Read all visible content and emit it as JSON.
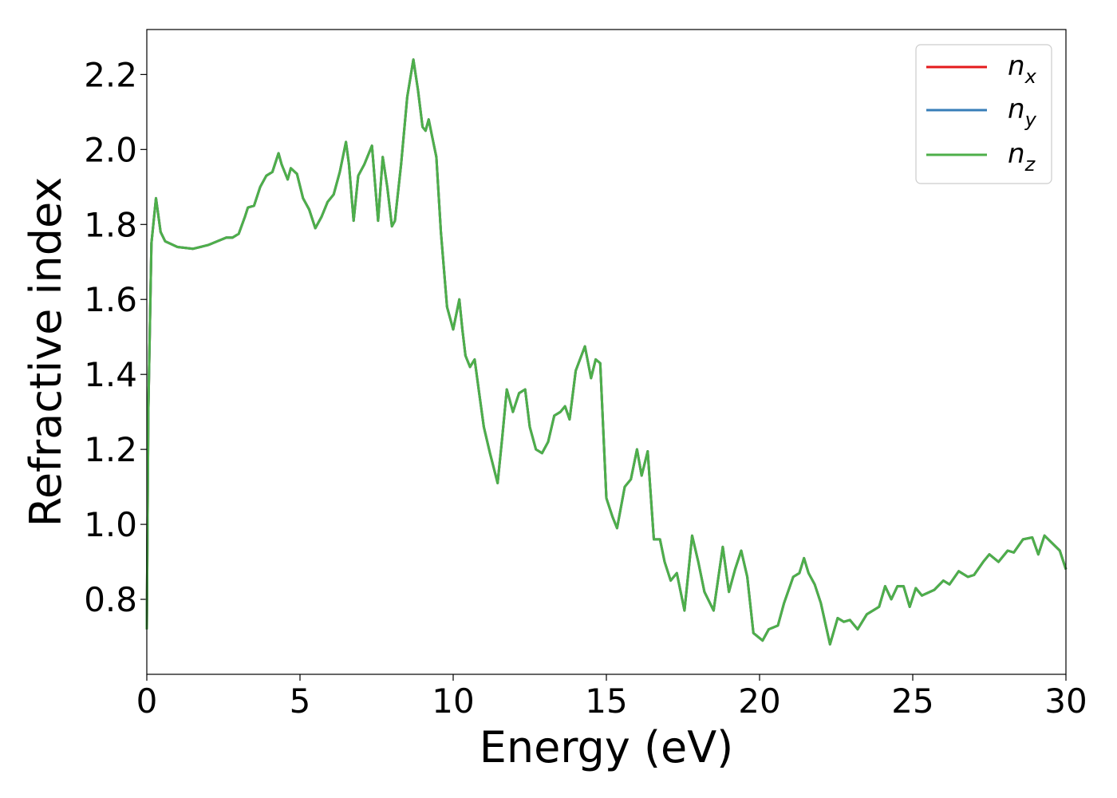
{
  "chart_data": {
    "type": "line",
    "xlabel": "Energy (eV)",
    "ylabel": "Refractive index",
    "xlim": [
      0,
      30
    ],
    "ylim": [
      0.6,
      2.32
    ],
    "xticks": [
      0,
      5,
      10,
      15,
      20,
      25,
      30
    ],
    "xtick_labels": [
      "0",
      "5",
      "10",
      "15",
      "20",
      "25",
      "30"
    ],
    "yticks": [
      0.8,
      1.0,
      1.2,
      1.4,
      1.6,
      1.8,
      2.0,
      2.2
    ],
    "ytick_labels": [
      "0.8",
      "1.0",
      "1.2",
      "1.4",
      "1.6",
      "1.8",
      "2.0",
      "2.2"
    ],
    "grid": false,
    "legend_position": "top-right",
    "series": [
      {
        "name": "n_x",
        "label_main": "n",
        "label_sub": "x",
        "color": "#e41a1c"
      },
      {
        "name": "n_y",
        "label_main": "n",
        "label_sub": "y",
        "color": "#377eb8"
      },
      {
        "name": "n_z",
        "label_main": "n",
        "label_sub": "z",
        "color": "#4daf4a"
      }
    ],
    "x": [
      0.0,
      0.05,
      0.15,
      0.3,
      0.45,
      0.6,
      1.0,
      1.5,
      2.0,
      2.3,
      2.6,
      2.8,
      3.0,
      3.2,
      3.3,
      3.5,
      3.7,
      3.9,
      4.1,
      4.3,
      4.4,
      4.5,
      4.6,
      4.7,
      4.9,
      5.1,
      5.3,
      5.5,
      5.7,
      5.9,
      6.1,
      6.3,
      6.5,
      6.6,
      6.75,
      6.9,
      7.1,
      7.35,
      7.55,
      7.7,
      7.85,
      8.0,
      8.1,
      8.3,
      8.5,
      8.7,
      8.85,
      9.0,
      9.1,
      9.2,
      9.3,
      9.45,
      9.6,
      9.8,
      10.0,
      10.2,
      10.3,
      10.4,
      10.55,
      10.7,
      10.85,
      11.0,
      11.2,
      11.45,
      11.6,
      11.75,
      11.95,
      12.15,
      12.35,
      12.5,
      12.7,
      12.9,
      13.1,
      13.3,
      13.5,
      13.65,
      13.8,
      14.0,
      14.3,
      14.5,
      14.65,
      14.8,
      15.0,
      15.2,
      15.35,
      15.6,
      15.8,
      16.0,
      16.15,
      16.35,
      16.55,
      16.75,
      16.9,
      17.1,
      17.3,
      17.55,
      17.8,
      18.0,
      18.2,
      18.5,
      18.8,
      19.0,
      19.2,
      19.4,
      19.6,
      19.8,
      20.1,
      20.3,
      20.6,
      20.8,
      21.1,
      21.3,
      21.45,
      21.6,
      21.8,
      22.0,
      22.3,
      22.55,
      22.75,
      22.95,
      23.2,
      23.5,
      23.9,
      24.1,
      24.3,
      24.5,
      24.7,
      24.9,
      25.1,
      25.3,
      25.7,
      26.0,
      26.2,
      26.5,
      26.8,
      27.0,
      27.3,
      27.5,
      27.8,
      28.1,
      28.3,
      28.6,
      28.9,
      29.1,
      29.3,
      29.55,
      29.8,
      30.0
    ],
    "values_nz": [
      0.72,
      1.3,
      1.75,
      1.87,
      1.78,
      1.755,
      1.74,
      1.735,
      1.745,
      1.755,
      1.765,
      1.765,
      1.775,
      1.82,
      1.845,
      1.85,
      1.9,
      1.93,
      1.94,
      1.99,
      1.96,
      1.94,
      1.92,
      1.95,
      1.935,
      1.87,
      1.84,
      1.79,
      1.82,
      1.86,
      1.88,
      1.94,
      2.02,
      1.96,
      1.81,
      1.93,
      1.96,
      2.01,
      1.81,
      1.98,
      1.9,
      1.795,
      1.81,
      1.96,
      2.14,
      2.24,
      2.16,
      2.06,
      2.05,
      2.08,
      2.04,
      1.98,
      1.78,
      1.58,
      1.52,
      1.6,
      1.52,
      1.45,
      1.42,
      1.44,
      1.35,
      1.26,
      1.19,
      1.11,
      1.23,
      1.36,
      1.3,
      1.35,
      1.36,
      1.26,
      1.2,
      1.19,
      1.22,
      1.29,
      1.3,
      1.315,
      1.28,
      1.41,
      1.475,
      1.39,
      1.44,
      1.43,
      1.07,
      1.02,
      0.99,
      1.1,
      1.12,
      1.2,
      1.13,
      1.195,
      0.96,
      0.96,
      0.9,
      0.85,
      0.87,
      0.77,
      0.97,
      0.9,
      0.82,
      0.77,
      0.94,
      0.82,
      0.88,
      0.93,
      0.86,
      0.71,
      0.69,
      0.72,
      0.73,
      0.79,
      0.86,
      0.87,
      0.91,
      0.87,
      0.84,
      0.79,
      0.68,
      0.75,
      0.74,
      0.745,
      0.72,
      0.76,
      0.78,
      0.835,
      0.8,
      0.835,
      0.835,
      0.78,
      0.83,
      0.81,
      0.825,
      0.85,
      0.84,
      0.875,
      0.86,
      0.865,
      0.9,
      0.92,
      0.9,
      0.93,
      0.925,
      0.96,
      0.965,
      0.92,
      0.97,
      0.95,
      0.93,
      0.88
    ]
  }
}
